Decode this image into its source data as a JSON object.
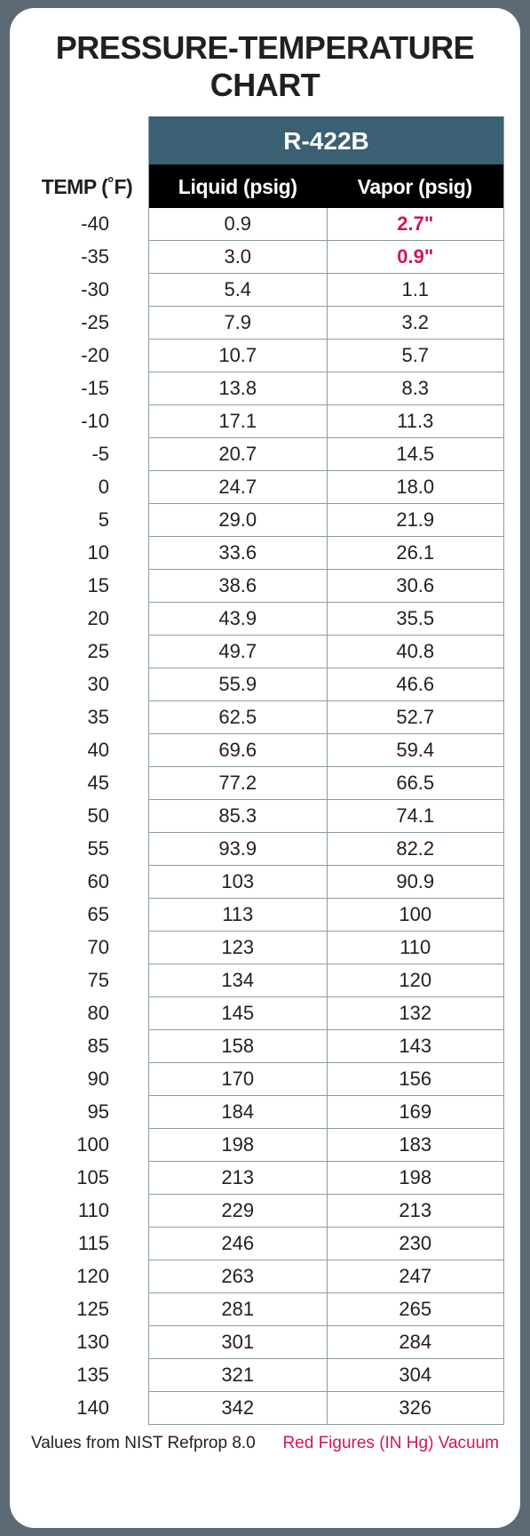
{
  "title": "PRESSURE-TEMPERATURE CHART",
  "refrigerant": "R-422B",
  "headers": {
    "temp": "TEMP (˚F)",
    "liquid": "Liquid (psig)",
    "vapor": "Vapor (psig)"
  },
  "colors": {
    "page_bg": "#5c6a75",
    "card_bg": "#ffffff",
    "header_bg": "#3b6073",
    "subheader_bg": "#000000",
    "text": "#231f20",
    "grid_line": "#8d9ca6",
    "vacuum": "#d3145a"
  },
  "typography": {
    "title_fontsize": 36,
    "header_fontsize": 23,
    "cell_fontsize": 22,
    "footer_fontsize": 19,
    "title_weight": 900,
    "header_weight": 700
  },
  "table": {
    "type": "table",
    "columns": [
      "temp_f",
      "liquid_psig",
      "vapor_psig"
    ],
    "rows": [
      {
        "temp": "-40",
        "liquid": "0.9",
        "vapor": "2.7\"",
        "vapor_vacuum": true
      },
      {
        "temp": "-35",
        "liquid": "3.0",
        "vapor": "0.9\"",
        "vapor_vacuum": true
      },
      {
        "temp": "-30",
        "liquid": "5.4",
        "vapor": "1.1"
      },
      {
        "temp": "-25",
        "liquid": "7.9",
        "vapor": "3.2"
      },
      {
        "temp": "-20",
        "liquid": "10.7",
        "vapor": "5.7"
      },
      {
        "temp": "-15",
        "liquid": "13.8",
        "vapor": "8.3"
      },
      {
        "temp": "-10",
        "liquid": "17.1",
        "vapor": "11.3"
      },
      {
        "temp": "-5",
        "liquid": "20.7",
        "vapor": "14.5"
      },
      {
        "temp": "0",
        "liquid": "24.7",
        "vapor": "18.0"
      },
      {
        "temp": "5",
        "liquid": "29.0",
        "vapor": "21.9"
      },
      {
        "temp": "10",
        "liquid": "33.6",
        "vapor": "26.1"
      },
      {
        "temp": "15",
        "liquid": "38.6",
        "vapor": "30.6"
      },
      {
        "temp": "20",
        "liquid": "43.9",
        "vapor": "35.5"
      },
      {
        "temp": "25",
        "liquid": "49.7",
        "vapor": "40.8"
      },
      {
        "temp": "30",
        "liquid": "55.9",
        "vapor": "46.6"
      },
      {
        "temp": "35",
        "liquid": "62.5",
        "vapor": "52.7"
      },
      {
        "temp": "40",
        "liquid": "69.6",
        "vapor": "59.4"
      },
      {
        "temp": "45",
        "liquid": "77.2",
        "vapor": "66.5"
      },
      {
        "temp": "50",
        "liquid": "85.3",
        "vapor": "74.1"
      },
      {
        "temp": "55",
        "liquid": "93.9",
        "vapor": "82.2"
      },
      {
        "temp": "60",
        "liquid": "103",
        "vapor": "90.9"
      },
      {
        "temp": "65",
        "liquid": "113",
        "vapor": "100"
      },
      {
        "temp": "70",
        "liquid": "123",
        "vapor": "110"
      },
      {
        "temp": "75",
        "liquid": "134",
        "vapor": "120"
      },
      {
        "temp": "80",
        "liquid": "145",
        "vapor": "132"
      },
      {
        "temp": "85",
        "liquid": "158",
        "vapor": "143"
      },
      {
        "temp": "90",
        "liquid": "170",
        "vapor": "156"
      },
      {
        "temp": "95",
        "liquid": "184",
        "vapor": "169"
      },
      {
        "temp": "100",
        "liquid": "198",
        "vapor": "183"
      },
      {
        "temp": "105",
        "liquid": "213",
        "vapor": "198"
      },
      {
        "temp": "110",
        "liquid": "229",
        "vapor": "213"
      },
      {
        "temp": "115",
        "liquid": "246",
        "vapor": "230"
      },
      {
        "temp": "120",
        "liquid": "263",
        "vapor": "247"
      },
      {
        "temp": "125",
        "liquid": "281",
        "vapor": "265"
      },
      {
        "temp": "130",
        "liquid": "301",
        "vapor": "284"
      },
      {
        "temp": "135",
        "liquid": "321",
        "vapor": "304"
      },
      {
        "temp": "140",
        "liquid": "342",
        "vapor": "326"
      }
    ]
  },
  "footer": {
    "source": "Values from NIST Refprop 8.0",
    "vacuum_note": "Red Figures (IN Hg) Vacuum"
  }
}
